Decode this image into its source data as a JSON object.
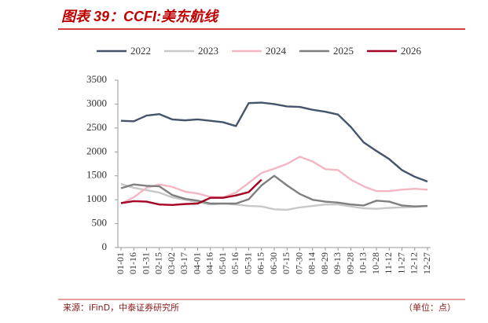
{
  "chart_data": {
    "type": "line",
    "title": "图表 39：CCFI:美东航线",
    "source": "来源：iFinD，中泰证券研究所",
    "unit": "（单位：点）",
    "categories": [
      "01-01",
      "01-16",
      "01-31",
      "02-15",
      "03-02",
      "03-17",
      "04-01",
      "04-16",
      "05-01",
      "05-16",
      "05-31",
      "06-15",
      "06-30",
      "07-15",
      "07-30",
      "08-14",
      "08-29",
      "09-13",
      "09-28",
      "10-13",
      "10-28",
      "11-12",
      "11-27",
      "12-12",
      "12-27"
    ],
    "series": [
      {
        "name": "2022",
        "color": "#44546a",
        "values": [
          2650,
          2640,
          2760,
          2790,
          2680,
          2660,
          2680,
          2650,
          2620,
          2540,
          3020,
          3030,
          3000,
          2950,
          2940,
          2880,
          2840,
          2780,
          2520,
          2200,
          2020,
          1850,
          1620,
          1480,
          1380
        ]
      },
      {
        "name": "2023",
        "color": "#c8c8c8",
        "values": [
          1330,
          1250,
          1200,
          1150,
          1050,
          1000,
          950,
          900,
          920,
          900,
          870,
          860,
          800,
          790,
          840,
          870,
          900,
          900,
          860,
          820,
          810,
          830,
          840,
          850,
          870
        ]
      },
      {
        "name": "2024",
        "color": "#f4b6c2",
        "values": [
          920,
          1050,
          1250,
          1320,
          1270,
          1170,
          1130,
          1060,
          1050,
          1150,
          1350,
          1560,
          1650,
          1750,
          1900,
          1800,
          1640,
          1620,
          1420,
          1280,
          1180,
          1180,
          1210,
          1230,
          1210
        ]
      },
      {
        "name": "2025",
        "color": "#7f7f7f",
        "values": [
          1240,
          1320,
          1290,
          1280,
          1100,
          1020,
          980,
          920,
          920,
          920,
          1010,
          1300,
          1500,
          1300,
          1120,
          1000,
          960,
          940,
          900,
          880,
          980,
          960,
          880,
          860,
          870
        ]
      },
      {
        "name": "2026",
        "color": "#a50021",
        "values": [
          930,
          970,
          960,
          900,
          890,
          910,
          920,
          1040,
          1040,
          1090,
          1160,
          1420,
          null,
          null,
          null,
          null,
          null,
          null,
          null,
          null,
          null,
          null,
          null,
          null,
          null
        ]
      }
    ],
    "ylim": [
      0,
      3500
    ],
    "yticks": [
      0,
      500,
      1000,
      1500,
      2000,
      2500,
      3000,
      3500
    ],
    "grid": false
  }
}
